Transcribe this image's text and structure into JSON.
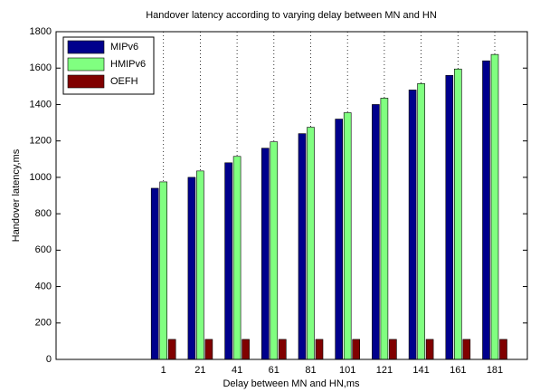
{
  "chart_data": {
    "type": "bar",
    "title": "Handover latency according to varying delay between MN and HN",
    "x_label": "Delay between MN and HN,ms",
    "y_label": "Handover latency,ms",
    "categories": [
      null,
      null,
      "1",
      "21",
      "41",
      "61",
      "81",
      "101",
      "121",
      "141",
      "161",
      "181"
    ],
    "series": [
      {
        "name": "MIPv6",
        "color": "#00008c",
        "values": [
          null,
          null,
          940,
          1000,
          1080,
          1160,
          1240,
          1320,
          1400,
          1480,
          1560,
          1640
        ]
      },
      {
        "name": "HMIPv6",
        "color": "#80ff80",
        "values": [
          null,
          null,
          975,
          1035,
          1115,
          1195,
          1275,
          1355,
          1435,
          1515,
          1595,
          1675
        ]
      },
      {
        "name": "OEFH",
        "color": "#800000",
        "values": [
          null,
          null,
          110,
          110,
          110,
          110,
          110,
          110,
          110,
          110,
          110,
          110
        ]
      }
    ],
    "ylim": [
      0,
      1800
    ],
    "yticks": [
      0,
      200,
      400,
      600,
      800,
      1000,
      1200,
      1400,
      1600,
      1800
    ],
    "grid": true,
    "legend": "upper left"
  }
}
